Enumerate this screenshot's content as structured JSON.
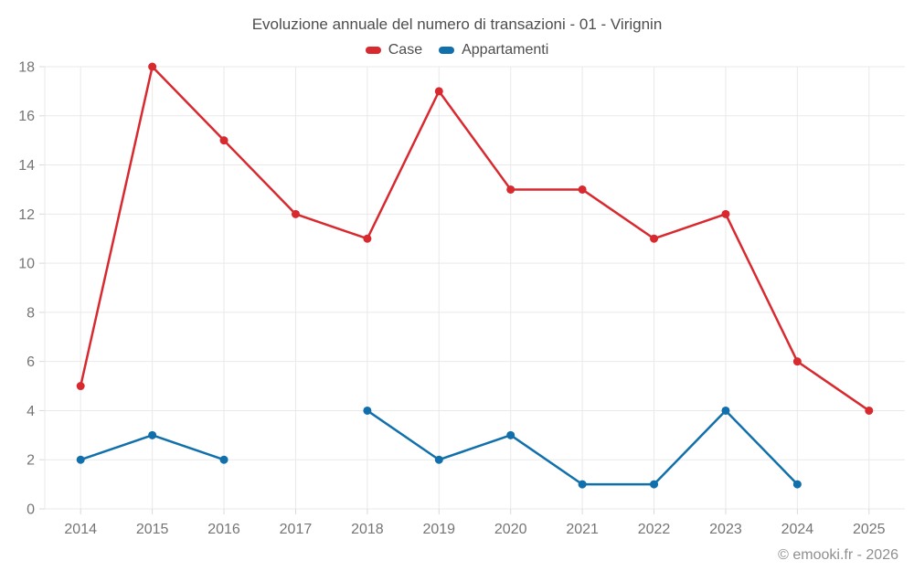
{
  "header": {
    "title": "Evoluzione annuale del numero di transazioni - 01 - Virignin"
  },
  "footer": {
    "copyright": "© emooki.fr - 2026"
  },
  "colors": {
    "background": "#ffffff",
    "grid": "#e9e9e9",
    "tick": "#d9d9d9",
    "axis_text": "#757575",
    "title_text": "#4d4d4d",
    "footer_text": "#8f8f8f",
    "case_red": "#d8292f",
    "appartamenti_blue": "#1170ab"
  },
  "chart_data": {
    "type": "line",
    "title": "Evoluzione annuale del numero di transazioni - 01 - Virignin",
    "xlabel": "",
    "ylabel": "",
    "categories": [
      "2014",
      "2015",
      "2016",
      "2017",
      "2018",
      "2019",
      "2020",
      "2021",
      "2022",
      "2023",
      "2024",
      "2025"
    ],
    "series": [
      {
        "name": "Case",
        "color": "#d8292f",
        "values": [
          5,
          18,
          15,
          12,
          11,
          17,
          13,
          13,
          11,
          12,
          6,
          4
        ]
      },
      {
        "name": "Appartamenti",
        "color": "#1170ab",
        "values": [
          2,
          3,
          2,
          null,
          4,
          2,
          3,
          1,
          1,
          4,
          1,
          null
        ]
      }
    ],
    "ylim": [
      0,
      18
    ],
    "yticks": [
      0,
      2,
      4,
      6,
      8,
      10,
      12,
      14,
      16,
      18
    ],
    "grid": true,
    "legend_position": "top-center"
  }
}
